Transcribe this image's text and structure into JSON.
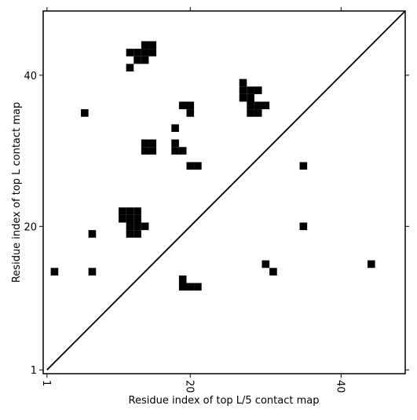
{
  "chart_data": {
    "type": "contact_map",
    "xlabel": "Residue index of top L/5 contact map",
    "ylabel": "Residue index of top L contact map",
    "xlim": [
      0.5,
      48.5
    ],
    "ylim": [
      0.5,
      48.5
    ],
    "xticks": [
      1,
      20,
      40
    ],
    "yticks": [
      1,
      20,
      40
    ],
    "diagonal": [
      1,
      48.5
    ],
    "color": "#000000",
    "cells": {
      "x": [
        14,
        15,
        14,
        15,
        12,
        13,
        13,
        14,
        12,
        6,
        27,
        27,
        28,
        29,
        27,
        28,
        28,
        29,
        30,
        28,
        29,
        19,
        20,
        20,
        18,
        14,
        15,
        14,
        15,
        18,
        18,
        19,
        20,
        21,
        35,
        35,
        11,
        12,
        13,
        11,
        12,
        13,
        12,
        13,
        14,
        12,
        13,
        7,
        2,
        7,
        19,
        19,
        20,
        21,
        30,
        31,
        44
      ],
      "y": [
        44,
        44,
        43,
        43,
        43,
        43,
        42,
        42,
        41,
        35,
        39,
        38,
        38,
        38,
        37,
        37,
        36,
        36,
        36,
        35,
        35,
        36,
        36,
        35,
        33,
        31,
        31,
        30,
        30,
        31,
        30,
        30,
        28,
        28,
        28,
        20,
        22,
        22,
        22,
        21,
        21,
        21,
        20,
        20,
        20,
        19,
        19,
        19,
        14,
        14,
        13,
        12,
        12,
        12,
        15,
        14,
        15
      ]
    }
  }
}
